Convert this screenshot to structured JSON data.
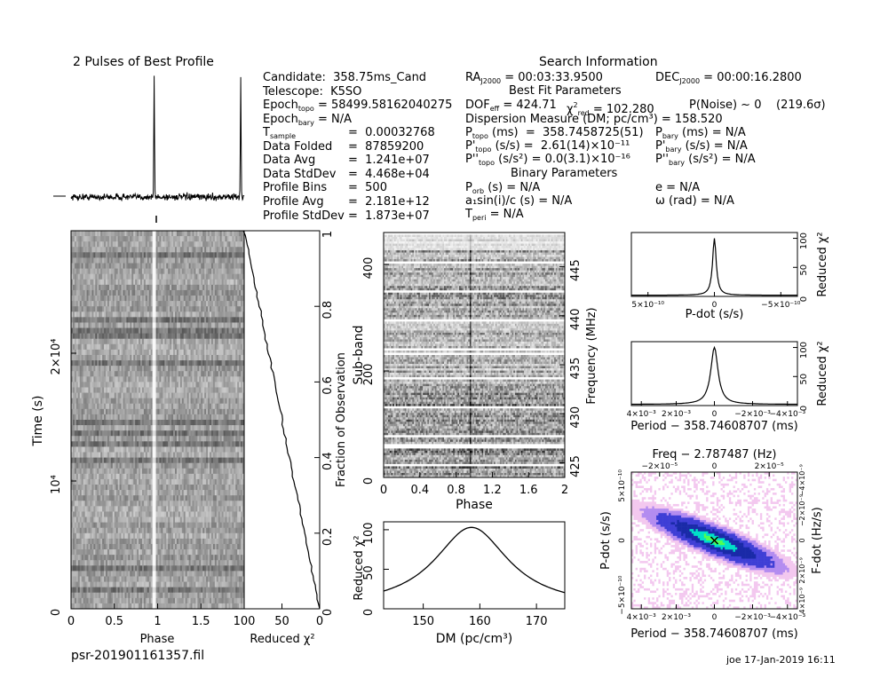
{
  "title_profile": "2 Pulses of Best Profile",
  "search_title": "Search Information",
  "candidate": {
    "candidate": "Candidate:  358.75ms_Cand",
    "telescope": "Telescope:  K5SO",
    "epoch_topo_label": "Epoch",
    "epoch_topo_sub": "topo",
    "epoch_topo_value": " = 58499.58162040275",
    "epoch_bary_label": "Epoch",
    "epoch_bary_sub": "bary",
    "epoch_bary_value": " = N/A",
    "rows": [
      {
        "label": "T",
        "sub": "sample",
        "value": "=  0.00032768"
      },
      {
        "label": "Data Folded",
        "sub": "",
        "value": "=  87859200"
      },
      {
        "label": "Data Avg",
        "sub": "",
        "value": "=  1.241e+07"
      },
      {
        "label": "Data StdDev",
        "sub": "",
        "value": "=  4.468e+04"
      },
      {
        "label": "Profile Bins",
        "sub": "",
        "value": "=  500"
      },
      {
        "label": "Profile Avg",
        "sub": "",
        "value": "=  2.181e+12"
      },
      {
        "label": "Profile StdDev",
        "sub": "",
        "value": "=  1.873e+07"
      }
    ]
  },
  "search": {
    "ra": "= 00:03:33.9500",
    "dec": "= 00:00:16.2800",
    "best_fit": "Best Fit Parameters",
    "dof": "= 424.71",
    "chi_red": "= 102.280",
    "p_noise": "P(Noise) ~ 0    (219.6σ)",
    "dm": "Dispersion Measure (DM; pc/cm³) = 158.520",
    "p_topo": "(ms)  =  358.7458725(51)",
    "p_bary": "(ms) = N/A",
    "pd_topo": "(s/s) =  2.61(14)×10⁻¹¹",
    "pd_bary": "(s/s) = N/A",
    "pdd_topo": "(s/s²) = 0.0(3.1)×10⁻¹⁶",
    "pdd_bary": "(s/s²) = N/A",
    "binary": "Binary Parameters",
    "p_orb": "(s) = N/A",
    "e": "e = N/A",
    "a1": "a₁sin(i)/c (s) = N/A",
    "omega": "ω (rad) = N/A",
    "t_peri": "= N/A"
  },
  "footer": {
    "file": "psr-201901161357.fil",
    "stamp": "joe 17-Jan-2019 16:11"
  },
  "chart_data": [
    {
      "type": "line",
      "title": "2 Pulses of Best Profile",
      "x_range": [
        0,
        2
      ],
      "pulse_phases": [
        0.96,
        1.96
      ]
    },
    {
      "type": "heatmap",
      "name": "time-phase",
      "xlabel": "Phase",
      "ylabel": "Time (s)",
      "xlim": [
        0,
        1.95
      ],
      "x_ticks": [
        "0",
        "0.5",
        "1",
        "1.5"
      ],
      "y_ticks": [
        "0",
        "10⁴",
        "2×10⁴"
      ],
      "pulse_phase": 0.96
    },
    {
      "type": "line",
      "name": "chi-vs-time",
      "xlabel": "Reduced χ²",
      "ylabel": "Fraction of Observation",
      "x_ticks": [
        "100",
        "50",
        "0"
      ],
      "y_ticks": [
        "0",
        "0.2",
        "0.4",
        "0.6",
        "0.8",
        "1"
      ],
      "xlim": [
        0,
        100
      ],
      "ylim": [
        0,
        1
      ]
    },
    {
      "type": "heatmap",
      "name": "subband-phase",
      "xlabel": "Phase",
      "ylabel": "Sub-band",
      "ylabel_right": "Frequency (MHz)",
      "x_ticks": [
        "0",
        "0.4",
        "0.8",
        "1.2",
        "1.6",
        "2"
      ],
      "y_ticks": [
        "0",
        "200",
        "400"
      ],
      "freq_ticks": [
        "425",
        "430",
        "435",
        "440",
        "445"
      ],
      "xlim": [
        0,
        2
      ],
      "ylim": [
        0,
        460
      ],
      "freq_lim": [
        423.5,
        448.5
      ],
      "pulse_phase": 0.96
    },
    {
      "type": "line",
      "name": "dm-chi",
      "xlabel": "DM (pc/cm³)",
      "ylabel": "Reduced χ²",
      "x_ticks": [
        "150",
        "160",
        "170"
      ],
      "y_ticks": [
        "0",
        "50",
        "100"
      ],
      "xlim": [
        143,
        175
      ],
      "ylim": [
        0,
        110
      ],
      "peak_x": 158.52,
      "peak_y": 102
    },
    {
      "type": "line",
      "name": "pdot-chi",
      "xlabel": "P-dot (s/s)",
      "ylabel": "Reduced χ²",
      "x_ticks": [
        "5×10⁻¹⁰",
        "0",
        "−5×10⁻¹⁰"
      ],
      "y_ticks": [
        "0",
        "50",
        "100"
      ],
      "ylim": [
        0,
        110
      ]
    },
    {
      "type": "line",
      "name": "period-chi",
      "xlabel": "Period − 358.74608707 (ms)",
      "ylabel": "Reduced χ²",
      "x_ticks": [
        "4×10⁻³",
        "2×10⁻³",
        "0",
        "−2×10⁻³",
        "−4×10⁻³"
      ],
      "y_ticks": [
        "0",
        "50",
        "100"
      ],
      "ylim": [
        0,
        110
      ]
    },
    {
      "type": "heatmap",
      "name": "p-pdot",
      "title": "Freq − 2.787487 (Hz)",
      "xlabel": "Period − 358.74608707 (ms)",
      "ylabel": "P-dot (s/s)",
      "ylabel_right": "F-dot (Hz/s)",
      "x_ticks": [
        "4×10⁻³",
        "2×10⁻³",
        "0",
        "−2×10⁻³",
        "−4×10⁻³"
      ],
      "top_ticks": [
        "−2×10⁻⁵",
        "0",
        "2×10⁻⁵"
      ],
      "y_ticks": [
        "5×10⁻¹⁰",
        "0",
        "−5×10⁻¹⁰"
      ],
      "right_ticks": [
        "4×10⁻⁹",
        "2×10⁻⁹",
        "0",
        "−2×10⁻⁹",
        "−4×10⁻⁹"
      ],
      "colors": [
        "#ffffff",
        "#f3c8ef",
        "#b38cf0",
        "#3f3fd6",
        "#1a2aa8",
        "#00e0c8",
        "#50ff50"
      ]
    }
  ]
}
